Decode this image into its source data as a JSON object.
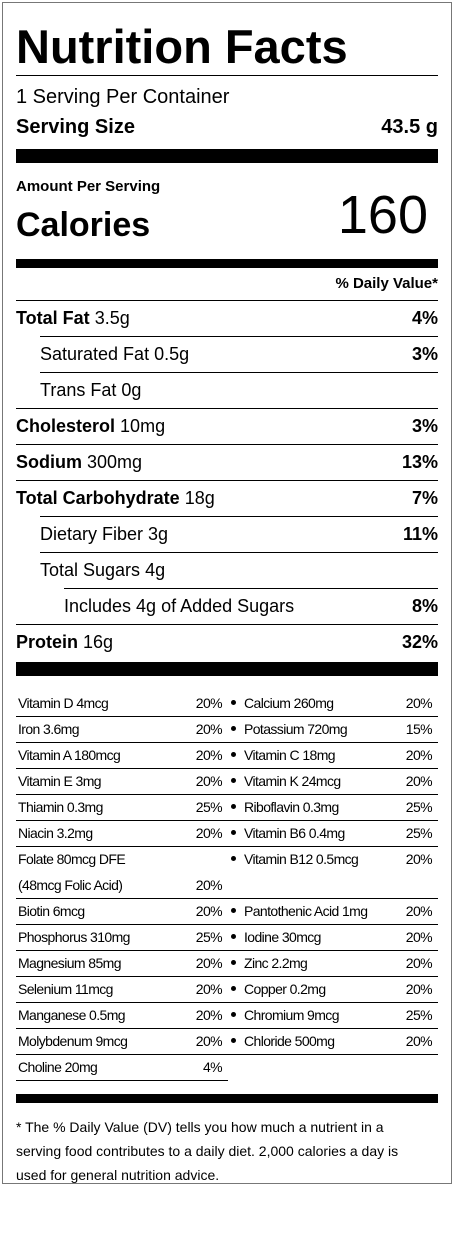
{
  "title": "Nutrition Facts",
  "servings": "1 Serving Per Container",
  "serving_size": {
    "label": "Serving Size",
    "value": "43.5 g"
  },
  "amount_per_serving": "Amount Per Serving",
  "calories": {
    "label": "Calories",
    "value": "160"
  },
  "daily_value_header": "% Daily Value*",
  "nutrients": [
    {
      "name": "Total Fat",
      "amount": "3.5g",
      "dv": "4%",
      "sub": [
        {
          "name": "Saturated Fat",
          "amount": "0.5g",
          "dv": "3%"
        },
        {
          "name": "Trans Fat",
          "amount": "0g"
        }
      ]
    },
    {
      "name": "Cholesterol",
      "amount": "10mg",
      "dv": "3%"
    },
    {
      "name": "Sodium",
      "amount": "300mg",
      "dv": "13%"
    },
    {
      "name": "Total Carbohydrate",
      "amount": "18g",
      "dv": "7%",
      "sub": [
        {
          "name": "Dietary Fiber",
          "amount": "3g",
          "dv": "11%"
        },
        {
          "name": "Total Sugars",
          "amount": "4g",
          "sub": [
            {
              "name": "Includes 4g of Added Sugars",
              "dv": "8%"
            }
          ]
        }
      ]
    },
    {
      "name": "Protein",
      "amount": "16g",
      "dv": "32%"
    }
  ],
  "micronutrients": [
    [
      {
        "text": "Vitamin D 4mcg",
        "dv": "20%"
      },
      {
        "text": "Calcium 260mg",
        "dv": "20%"
      }
    ],
    [
      {
        "text": "Iron 3.6mg",
        "dv": "20%"
      },
      {
        "text": "Potassium 720mg",
        "dv": "15%"
      }
    ],
    [
      {
        "text": "Vitamin A 180mcg",
        "dv": "20%"
      },
      {
        "text": "Vitamin C 18mg",
        "dv": "20%"
      }
    ],
    [
      {
        "text": "Vitamin E 3mg",
        "dv": "20%"
      },
      {
        "text": "Vitamin K 24mcg",
        "dv": "20%"
      }
    ],
    [
      {
        "text": "Thiamin 0.3mg",
        "dv": "25%"
      },
      {
        "text": "Riboflavin 0.3mg",
        "dv": "25%"
      }
    ],
    [
      {
        "text": "Niacin 3.2mg",
        "dv": "20%"
      },
      {
        "text": "Vitamin B6 0.4mg",
        "dv": "25%"
      }
    ],
    [
      {
        "text": "Folate 80mcg DFE",
        "note": "(48mcg Folic Acid)",
        "dv": "20%"
      },
      {
        "text": "Vitamin B12 0.5mcg",
        "dv": "20%"
      }
    ],
    [
      {
        "text": "Biotin 6mcg",
        "dv": "20%"
      },
      {
        "text": "Pantothenic Acid 1mg",
        "dv": "20%"
      }
    ],
    [
      {
        "text": "Phosphorus 310mg",
        "dv": "25%"
      },
      {
        "text": "Iodine 30mcg",
        "dv": "20%"
      }
    ],
    [
      {
        "text": "Magnesium 85mg",
        "dv": "20%"
      },
      {
        "text": "Zinc 2.2mg",
        "dv": "20%"
      }
    ],
    [
      {
        "text": "Selenium 11mcg",
        "dv": "20%"
      },
      {
        "text": "Copper 0.2mg",
        "dv": "20%"
      }
    ],
    [
      {
        "text": "Manganese 0.5mg",
        "dv": "20%"
      },
      {
        "text": "Chromium 9mcg",
        "dv": "25%"
      }
    ],
    [
      {
        "text": "Molybdenum 9mcg",
        "dv": "20%"
      },
      {
        "text": "Chloride 500mg",
        "dv": "20%"
      }
    ],
    [
      {
        "text": "Choline 20mg",
        "dv": "4%"
      }
    ]
  ],
  "footnote": "* The % Daily Value (DV) tells you how much a nutrient in a serving food contributes to a daily diet. 2,000 calories a day is used for general nutrition advice."
}
